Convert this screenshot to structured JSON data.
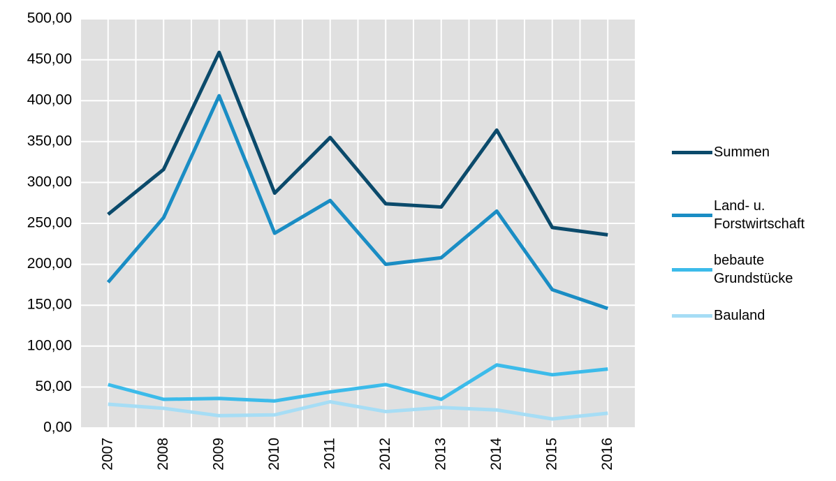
{
  "chart_data": {
    "type": "line",
    "categories": [
      "2007",
      "2008",
      "2009",
      "2010",
      "2011",
      "2012",
      "2013",
      "2014",
      "2015",
      "2016"
    ],
    "series": [
      {
        "name": "Summen",
        "color": "#0b4a6b",
        "values": [
          261,
          316,
          459,
          287,
          355,
          274,
          270,
          364,
          245,
          236
        ]
      },
      {
        "name": "Land- u. Forstwirtschaft",
        "color": "#1a8dc4",
        "values": [
          178,
          257,
          406,
          238,
          278,
          200,
          208,
          265,
          169,
          146
        ]
      },
      {
        "name": "bebaute Grundstücke",
        "color": "#3cbbea",
        "values": [
          53,
          35,
          36,
          33,
          44,
          53,
          35,
          77,
          65,
          72
        ]
      },
      {
        "name": "Bauland",
        "color": "#a6ddf5",
        "values": [
          29,
          24,
          15,
          16,
          32,
          20,
          25,
          22,
          11,
          18
        ]
      }
    ],
    "ylim": [
      0,
      500
    ],
    "yticks": [
      {
        "value": 0,
        "label": "0,00"
      },
      {
        "value": 50,
        "label": "50,00"
      },
      {
        "value": 100,
        "label": "100,00"
      },
      {
        "value": 150,
        "label": "150,00"
      },
      {
        "value": 200,
        "label": "200,00"
      },
      {
        "value": 250,
        "label": "250,00"
      },
      {
        "value": 300,
        "label": "300,00"
      },
      {
        "value": 350,
        "label": "350,00"
      },
      {
        "value": 400,
        "label": "400,00"
      },
      {
        "value": 450,
        "label": "450,00"
      },
      {
        "value": 500,
        "label": "500,00"
      }
    ],
    "grid": true
  }
}
